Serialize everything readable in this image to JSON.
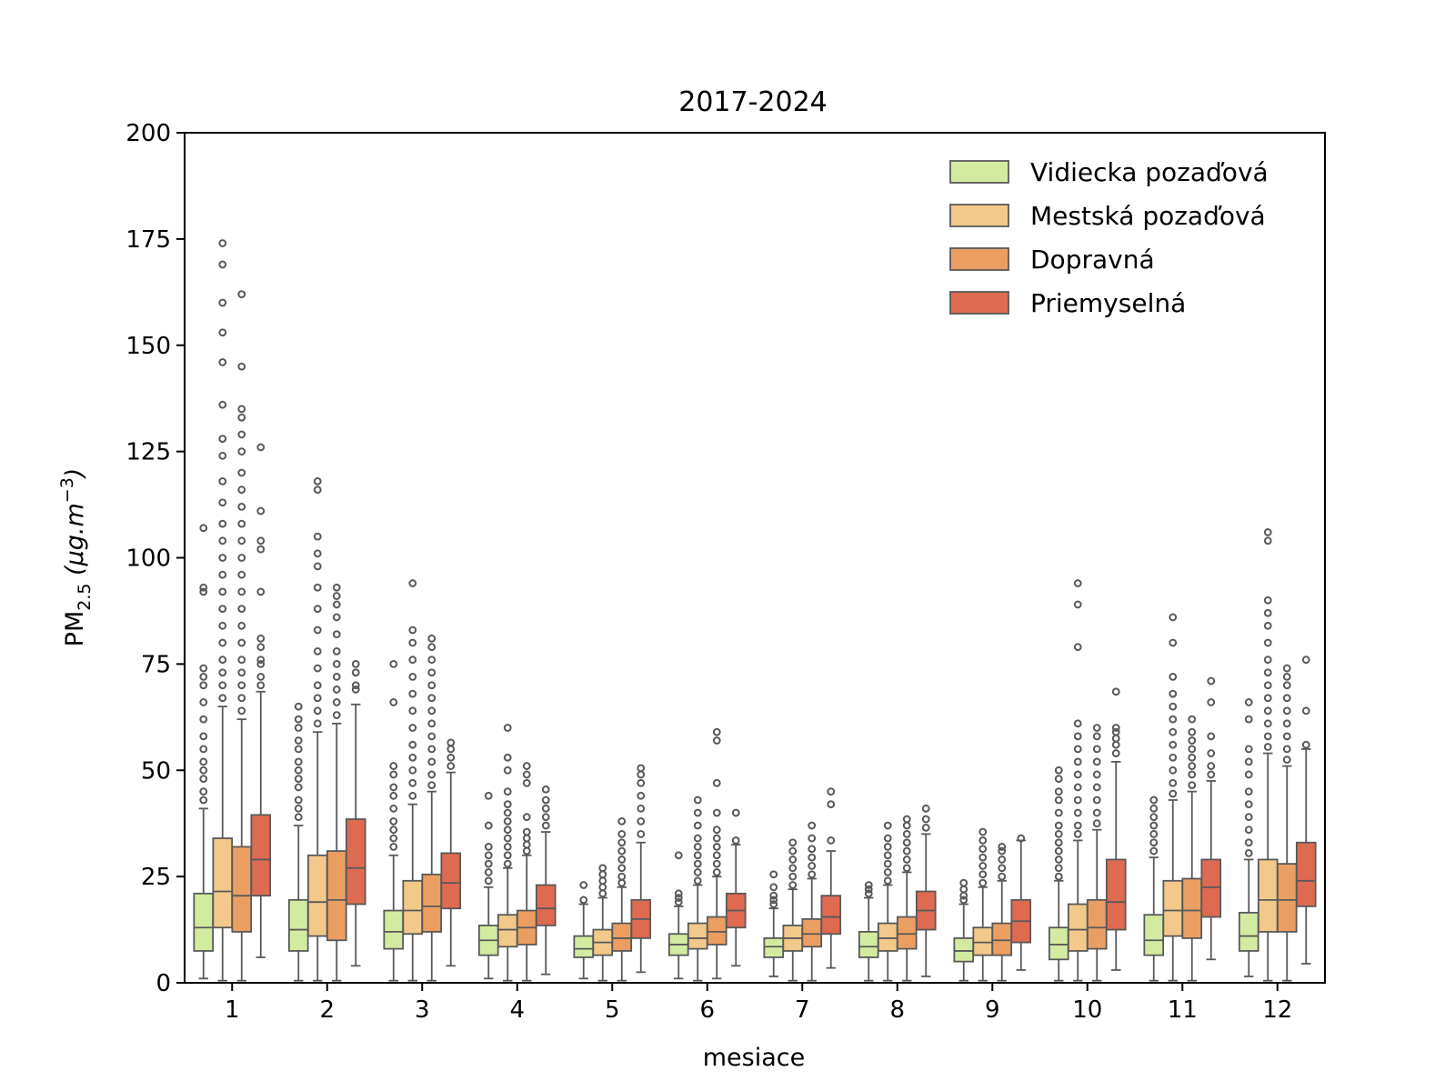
{
  "chart_data": {
    "type": "boxplot",
    "title": "2017-2024",
    "xlabel": "mesiace",
    "ylabel": {
      "base": "PM",
      "sub": "2.5",
      "unit_open": " (",
      "unit_mu": "µ",
      "unit_g": "g.m",
      "unit_sup": "−3",
      "unit_close": ")"
    },
    "ylim": [
      0,
      200
    ],
    "yticks": [
      "0",
      "25",
      "50",
      "75",
      "100",
      "125",
      "150",
      "175",
      "200"
    ],
    "categories": [
      "1",
      "2",
      "3",
      "4",
      "5",
      "6",
      "7",
      "8",
      "9",
      "10",
      "11",
      "12"
    ],
    "legend_position": "top-right",
    "series": [
      {
        "name": "Vidiecka pozaďová",
        "color": "#d3eba0",
        "boxes": [
          {
            "whislo": 1,
            "q1": 7.5,
            "med": 13,
            "q3": 21,
            "whishi": 41,
            "fliers": [
              43,
              45,
              48,
              50,
              52,
              55,
              58,
              62,
              66,
              70,
              72,
              74,
              92,
              93,
              107
            ]
          },
          {
            "whislo": 0.5,
            "q1": 7.5,
            "med": 12.5,
            "q3": 19.5,
            "whishi": 37,
            "fliers": [
              39,
              41,
              43,
              46,
              48,
              50,
              52,
              55,
              57,
              60,
              62,
              65
            ]
          },
          {
            "whislo": 0.5,
            "q1": 8,
            "med": 12,
            "q3": 17,
            "whishi": 30,
            "fliers": [
              32,
              34,
              36,
              38,
              41,
              44,
              46,
              49,
              51,
              66,
              75
            ]
          },
          {
            "whislo": 1,
            "q1": 6.5,
            "med": 10,
            "q3": 13.5,
            "whishi": 22.5,
            "fliers": [
              24,
              26,
              28,
              30,
              32,
              37,
              44
            ]
          },
          {
            "whislo": 1,
            "q1": 6,
            "med": 8,
            "q3": 11,
            "whishi": 18.5,
            "fliers": [
              19.5,
              23
            ]
          },
          {
            "whislo": 1,
            "q1": 6.5,
            "med": 9,
            "q3": 11.5,
            "whishi": 18,
            "fliers": [
              19,
              20,
              21,
              30
            ]
          },
          {
            "whislo": 1.5,
            "q1": 6,
            "med": 8.5,
            "q3": 10.5,
            "whishi": 17.5,
            "fliers": [
              18.5,
              19.5,
              20.5,
              22.5,
              25.5
            ]
          },
          {
            "whislo": 0.5,
            "q1": 6,
            "med": 8.5,
            "q3": 12,
            "whishi": 20,
            "fliers": [
              21,
              22,
              23
            ]
          },
          {
            "whislo": 0.5,
            "q1": 5,
            "med": 7.5,
            "q3": 10.5,
            "whishi": 18.5,
            "fliers": [
              19.5,
              20.5,
              22,
              23.5
            ]
          },
          {
            "whislo": 0.5,
            "q1": 5.5,
            "med": 9,
            "q3": 13,
            "whishi": 24,
            "fliers": [
              25,
              27,
              29,
              31,
              33,
              35,
              37,
              40,
              43,
              45,
              48,
              50
            ]
          },
          {
            "whislo": 0.5,
            "q1": 6.5,
            "med": 10,
            "q3": 16,
            "whishi": 29.5,
            "fliers": [
              31,
              33,
              35,
              37,
              39,
              41,
              43
            ]
          },
          {
            "whislo": 1.5,
            "q1": 7.5,
            "med": 11,
            "q3": 16.5,
            "whishi": 29,
            "fliers": [
              30.5,
              33,
              36,
              39,
              42,
              45,
              49,
              52,
              55,
              62,
              66
            ]
          }
        ]
      },
      {
        "name": "Mestská pozaďová",
        "color": "#f2c98a",
        "boxes": [
          {
            "whislo": 0.5,
            "q1": 13,
            "med": 21.5,
            "q3": 34,
            "whishi": 65,
            "fliers": [
              67,
              70,
              73,
              76,
              80,
              84,
              88,
              92,
              96,
              100,
              104,
              108,
              113,
              118,
              124,
              128,
              136,
              146,
              153,
              160,
              169,
              174
            ]
          },
          {
            "whislo": 0.5,
            "q1": 11,
            "med": 19,
            "q3": 30,
            "whishi": 59,
            "fliers": [
              61,
              64,
              67,
              70,
              74,
              78,
              83,
              88,
              93,
              98,
              101,
              105,
              116,
              118
            ]
          },
          {
            "whislo": 0.5,
            "q1": 11.5,
            "med": 17,
            "q3": 24,
            "whishi": 42,
            "fliers": [
              44,
              47,
              50,
              53,
              56,
              60,
              64,
              68,
              72,
              76,
              80,
              83,
              94
            ]
          },
          {
            "whislo": 0.5,
            "q1": 8.5,
            "med": 12.5,
            "q3": 16,
            "whishi": 27,
            "fliers": [
              28,
              30,
              32,
              34,
              36,
              38,
              40,
              42,
              45,
              50,
              53,
              60
            ]
          },
          {
            "whislo": 0.5,
            "q1": 6.5,
            "med": 9.5,
            "q3": 12.5,
            "whishi": 20,
            "fliers": [
              21,
              22.5,
              24,
              25.5,
              27
            ]
          },
          {
            "whislo": 0.5,
            "q1": 8,
            "med": 10.5,
            "q3": 14,
            "whishi": 23,
            "fliers": [
              24,
              26,
              28,
              30,
              32,
              34,
              37,
              40,
              43
            ]
          },
          {
            "whislo": 0.5,
            "q1": 7.5,
            "med": 10.5,
            "q3": 13.5,
            "whishi": 22,
            "fliers": [
              23,
              25,
              27,
              29,
              31,
              33
            ]
          },
          {
            "whislo": 0.5,
            "q1": 7.5,
            "med": 10.5,
            "q3": 14,
            "whishi": 23,
            "fliers": [
              24,
              26,
              28,
              30,
              32,
              34,
              37
            ]
          },
          {
            "whislo": 0.5,
            "q1": 6.5,
            "med": 9.5,
            "q3": 13,
            "whishi": 22.5,
            "fliers": [
              23.5,
              25.5,
              27.5,
              29.5,
              31.5,
              33.5,
              35.5
            ]
          },
          {
            "whislo": 0.5,
            "q1": 7.5,
            "med": 12.5,
            "q3": 18.5,
            "whishi": 33.5,
            "fliers": [
              35,
              37,
              40,
              43,
              46,
              49,
              52,
              55,
              58,
              61,
              79,
              89,
              94
            ]
          },
          {
            "whislo": 0.5,
            "q1": 11,
            "med": 17,
            "q3": 24,
            "whishi": 43,
            "fliers": [
              44.5,
              47,
              50,
              53,
              56,
              59,
              62,
              65,
              68,
              72,
              80,
              86
            ]
          },
          {
            "whislo": 0.5,
            "q1": 12,
            "med": 19.5,
            "q3": 29,
            "whishi": 54,
            "fliers": [
              55.5,
              58,
              61,
              64,
              67,
              70,
              73,
              76,
              80,
              84,
              87,
              90,
              104,
              106
            ]
          }
        ]
      },
      {
        "name": "Dopravná",
        "color": "#eb9e62",
        "boxes": [
          {
            "whislo": 0.5,
            "q1": 12,
            "med": 20.5,
            "q3": 32,
            "whishi": 62,
            "fliers": [
              64,
              67,
              70,
              73,
              76,
              80,
              84,
              88,
              92,
              96,
              100,
              104,
              108,
              112,
              116,
              120,
              125,
              129,
              133,
              135,
              145,
              162
            ]
          },
          {
            "whislo": 0.5,
            "q1": 10,
            "med": 19.5,
            "q3": 31,
            "whishi": 61,
            "fliers": [
              63,
              66,
              69,
              72,
              75,
              78,
              82,
              86,
              89,
              91,
              93
            ]
          },
          {
            "whislo": 0.5,
            "q1": 12,
            "med": 18,
            "q3": 25.5,
            "whishi": 45,
            "fliers": [
              46.5,
              49,
              52,
              55,
              58,
              61,
              64,
              67,
              70,
              73,
              76,
              79,
              81
            ]
          },
          {
            "whislo": 0.5,
            "q1": 9,
            "med": 13,
            "q3": 17,
            "whishi": 30,
            "fliers": [
              31,
              32.5,
              34,
              35.5,
              39,
              47,
              49,
              51
            ]
          },
          {
            "whislo": 0.5,
            "q1": 7.5,
            "med": 10.5,
            "q3": 14,
            "whishi": 22.5,
            "fliers": [
              23.5,
              25,
              27,
              29,
              31,
              33,
              35,
              38
            ]
          },
          {
            "whislo": 1,
            "q1": 9,
            "med": 12,
            "q3": 15.5,
            "whishi": 25,
            "fliers": [
              26,
              28,
              30,
              32,
              34,
              36,
              40,
              47,
              57,
              59
            ]
          },
          {
            "whislo": 0.5,
            "q1": 8.5,
            "med": 11.5,
            "q3": 15,
            "whishi": 24.5,
            "fliers": [
              25.5,
              27.5,
              29.5,
              31.5,
              34,
              37
            ]
          },
          {
            "whislo": 0.5,
            "q1": 8,
            "med": 11.5,
            "q3": 15.5,
            "whishi": 26,
            "fliers": [
              27,
              29,
              31,
              33,
              35,
              37,
              38.5
            ]
          },
          {
            "whislo": 0.5,
            "q1": 6.5,
            "med": 10,
            "q3": 14,
            "whishi": 24,
            "fliers": [
              25,
              27,
              29,
              31,
              32
            ]
          },
          {
            "whislo": 0.5,
            "q1": 8,
            "med": 13,
            "q3": 19.5,
            "whishi": 36,
            "fliers": [
              37.5,
              40,
              43,
              46,
              49,
              52,
              55,
              58,
              60
            ]
          },
          {
            "whislo": 0.5,
            "q1": 10.5,
            "med": 17,
            "q3": 24.5,
            "whishi": 45,
            "fliers": [
              46.5,
              49,
              51,
              53,
              55,
              57,
              59,
              62
            ]
          },
          {
            "whislo": 0.5,
            "q1": 12,
            "med": 19.5,
            "q3": 28,
            "whishi": 51,
            "fliers": [
              52.5,
              55,
              58,
              61,
              64,
              67,
              70,
              72,
              74
            ]
          }
        ]
      },
      {
        "name": "Priemyselná",
        "color": "#de6a52",
        "boxes": [
          {
            "whislo": 6,
            "q1": 20.5,
            "med": 29,
            "q3": 39.5,
            "whishi": 68.5,
            "fliers": [
              70,
              72,
              75,
              76,
              79,
              81,
              92,
              102,
              104,
              111,
              126
            ]
          },
          {
            "whislo": 4,
            "q1": 18.5,
            "med": 27,
            "q3": 38.5,
            "whishi": 65.5,
            "fliers": [
              69,
              70,
              73,
              75
            ]
          },
          {
            "whislo": 4,
            "q1": 17.5,
            "med": 23.5,
            "q3": 30.5,
            "whishi": 49.5,
            "fliers": [
              51,
              53,
              55,
              56.5
            ]
          },
          {
            "whislo": 2,
            "q1": 13.5,
            "med": 17.5,
            "q3": 23,
            "whishi": 35.5,
            "fliers": [
              37,
              39,
              41,
              43,
              45.5
            ]
          },
          {
            "whislo": 2.5,
            "q1": 10.5,
            "med": 15,
            "q3": 19.5,
            "whishi": 33,
            "fliers": [
              35,
              38,
              41,
              44,
              47,
              49,
              50.5
            ]
          },
          {
            "whislo": 4,
            "q1": 13,
            "med": 17,
            "q3": 21,
            "whishi": 32.5,
            "fliers": [
              33.5,
              40
            ]
          },
          {
            "whislo": 3.5,
            "q1": 11.5,
            "med": 15.5,
            "q3": 20.5,
            "whishi": 31,
            "fliers": [
              33.5,
              42,
              45
            ]
          },
          {
            "whislo": 1.5,
            "q1": 12.5,
            "med": 17,
            "q3": 21.5,
            "whishi": 35,
            "fliers": [
              36.5,
              38.5,
              41
            ]
          },
          {
            "whislo": 3,
            "q1": 9.5,
            "med": 14.5,
            "q3": 19.5,
            "whishi": 33.5,
            "fliers": [
              34
            ]
          },
          {
            "whislo": 3,
            "q1": 12.5,
            "med": 19,
            "q3": 29,
            "whishi": 52,
            "fliers": [
              54,
              56,
              57.5,
              59,
              60,
              68.5
            ]
          },
          {
            "whislo": 5.5,
            "q1": 15.5,
            "med": 22.5,
            "q3": 29,
            "whishi": 47.5,
            "fliers": [
              49,
              51,
              54,
              58,
              66,
              71
            ]
          },
          {
            "whislo": 4.5,
            "q1": 18,
            "med": 24,
            "q3": 33,
            "whishi": 55,
            "fliers": [
              56,
              64,
              76
            ]
          }
        ]
      }
    ]
  }
}
